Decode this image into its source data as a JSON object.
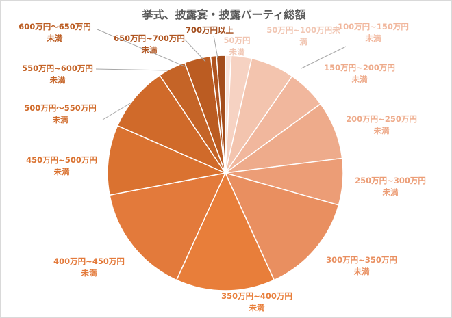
{
  "chart_data": {
    "type": "pie",
    "title": "挙式、披露宴・披露パーティ総額",
    "start_angle_deg": 0,
    "direction": "clockwise",
    "slices": [
      {
        "label": [
          "50万円",
          "未満"
        ],
        "value": 0.8,
        "color": "#f9e4dc"
      },
      {
        "label": [
          "50万円~100万円未",
          "満"
        ],
        "value": 2.8,
        "color": "#f6d2c2"
      },
      {
        "label": [
          "100万円~150万円",
          "未満"
        ],
        "value": 6.0,
        "color": "#f3c4ae"
      },
      {
        "label": [
          "150万円~200万円",
          "未満"
        ],
        "value": 5.4,
        "color": "#f1b79d"
      },
      {
        "label": [
          "200万円~250万円",
          "未満"
        ],
        "value": 8.0,
        "color": "#eeab8b"
      },
      {
        "label": [
          "250万円~300万円",
          "未満"
        ],
        "value": 6.4,
        "color": "#ec9d76"
      },
      {
        "label": [
          "300万円~350万円",
          "未満"
        ],
        "value": 13.8,
        "color": "#e98f60"
      },
      {
        "label": [
          "350万円~400万円",
          "未満"
        ],
        "value": 13.6,
        "color": "#e87e3a"
      },
      {
        "label": [
          "400万円~450万円",
          "未満"
        ],
        "value": 15.2,
        "color": "#e37a3b"
      },
      {
        "label": [
          "450万円~500万円",
          "未満"
        ],
        "value": 9.6,
        "color": "#da7230"
      },
      {
        "label": [
          "500万円～550万円",
          "未満"
        ],
        "value": 9.0,
        "color": "#d06a2a"
      },
      {
        "label": [
          "550万円~600万円",
          "未満"
        ],
        "value": 3.8,
        "color": "#c56427"
      },
      {
        "label": [
          "600万円～650万円",
          "未満"
        ],
        "value": 3.6,
        "color": "#bb5c22"
      },
      {
        "label": [
          "650万円~700万円",
          "未満"
        ],
        "value": 0.8,
        "color": "#b0541f"
      },
      {
        "label": [
          "700万円以上"
        ],
        "value": 1.2,
        "color": "#a34d1c"
      }
    ],
    "legend": "none",
    "data_labels": "category names with leader lines"
  }
}
